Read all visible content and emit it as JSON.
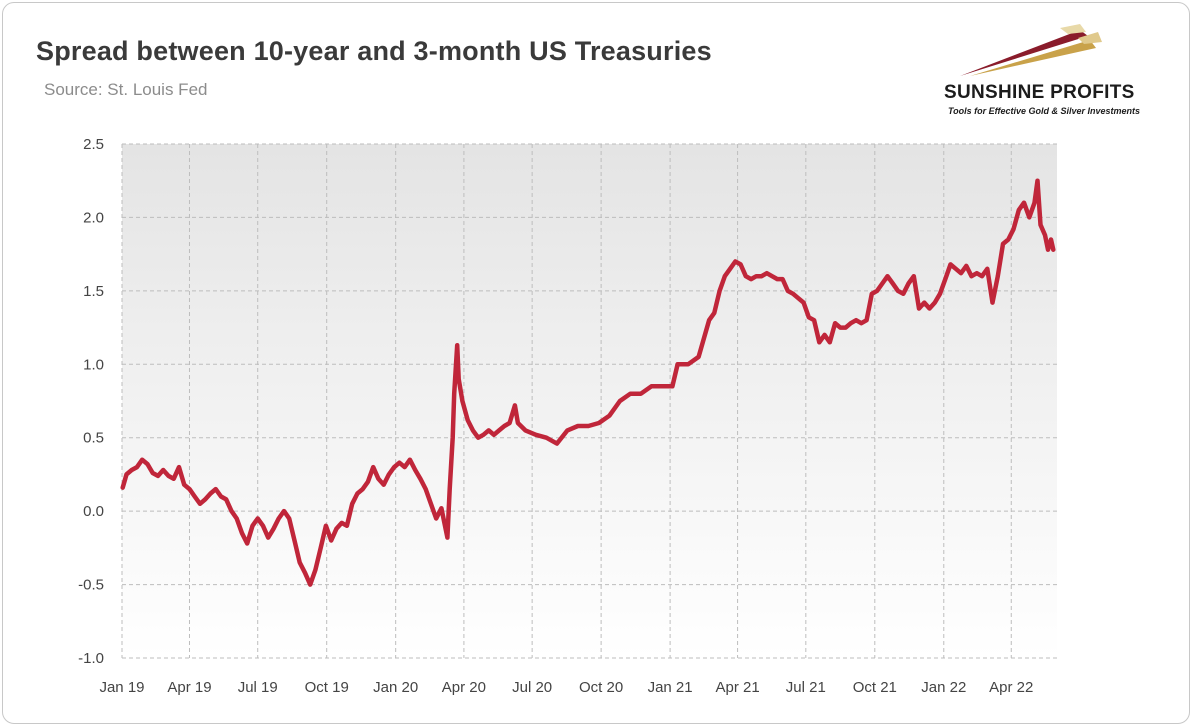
{
  "header": {
    "title": "Spread between 10-year and 3-month US Treasuries",
    "subtitle": "Source: St. Louis Fed"
  },
  "logo": {
    "name": "SUNSHINE PROFITS",
    "tagline": "Tools for Effective Gold & Silver Investments",
    "colors": [
      "#8a1c2b",
      "#c9a24a",
      "#e8d9a8"
    ]
  },
  "chart_data": {
    "type": "line",
    "title": "Spread between 10-year and 3-month US Treasuries",
    "xlabel": "",
    "ylabel": "",
    "ylim": [
      -1.0,
      2.5
    ],
    "yticks": [
      "2.5",
      "2.0",
      "1.5",
      "1.0",
      "0.5",
      "0.0",
      "-0.5",
      "-1.0"
    ],
    "xticks": [
      "Jan 19",
      "Apr 19",
      "Jul 19",
      "Oct 19",
      "Jan 20",
      "Apr 20",
      "Jul 20",
      "Oct 20",
      "Jan 21",
      "Apr 21",
      "Jul 21",
      "Oct 21",
      "Jan 22",
      "Apr 22"
    ],
    "grid": true,
    "line_color": "#c0263a",
    "series": [
      {
        "points": [
          [
            "2019-01-02",
            0.16
          ],
          [
            "2019-01-07",
            0.25
          ],
          [
            "2019-01-14",
            0.28
          ],
          [
            "2019-01-21",
            0.3
          ],
          [
            "2019-01-28",
            0.35
          ],
          [
            "2019-02-04",
            0.32
          ],
          [
            "2019-02-11",
            0.26
          ],
          [
            "2019-02-18",
            0.24
          ],
          [
            "2019-02-25",
            0.28
          ],
          [
            "2019-03-04",
            0.24
          ],
          [
            "2019-03-11",
            0.22
          ],
          [
            "2019-03-18",
            0.3
          ],
          [
            "2019-03-25",
            0.18
          ],
          [
            "2019-04-01",
            0.15
          ],
          [
            "2019-04-08",
            0.1
          ],
          [
            "2019-04-15",
            0.05
          ],
          [
            "2019-04-22",
            0.08
          ],
          [
            "2019-04-29",
            0.12
          ],
          [
            "2019-05-06",
            0.15
          ],
          [
            "2019-05-13",
            0.1
          ],
          [
            "2019-05-20",
            0.08
          ],
          [
            "2019-05-27",
            0.0
          ],
          [
            "2019-06-03",
            -0.05
          ],
          [
            "2019-06-10",
            -0.15
          ],
          [
            "2019-06-17",
            -0.22
          ],
          [
            "2019-06-24",
            -0.1
          ],
          [
            "2019-07-01",
            -0.05
          ],
          [
            "2019-07-08",
            -0.1
          ],
          [
            "2019-07-15",
            -0.18
          ],
          [
            "2019-07-22",
            -0.12
          ],
          [
            "2019-07-29",
            -0.05
          ],
          [
            "2019-08-05",
            0.0
          ],
          [
            "2019-08-12",
            -0.05
          ],
          [
            "2019-08-19",
            -0.2
          ],
          [
            "2019-08-26",
            -0.35
          ],
          [
            "2019-09-02",
            -0.42
          ],
          [
            "2019-09-09",
            -0.5
          ],
          [
            "2019-09-16",
            -0.4
          ],
          [
            "2019-09-23",
            -0.25
          ],
          [
            "2019-09-30",
            -0.1
          ],
          [
            "2019-10-07",
            -0.2
          ],
          [
            "2019-10-14",
            -0.12
          ],
          [
            "2019-10-21",
            -0.08
          ],
          [
            "2019-10-28",
            -0.1
          ],
          [
            "2019-11-04",
            0.05
          ],
          [
            "2019-11-11",
            0.12
          ],
          [
            "2019-11-18",
            0.15
          ],
          [
            "2019-11-25",
            0.2
          ],
          [
            "2019-12-02",
            0.3
          ],
          [
            "2019-12-09",
            0.22
          ],
          [
            "2019-12-16",
            0.18
          ],
          [
            "2019-12-23",
            0.25
          ],
          [
            "2019-12-30",
            0.3
          ],
          [
            "2020-01-06",
            0.33
          ],
          [
            "2020-01-13",
            0.3
          ],
          [
            "2020-01-20",
            0.35
          ],
          [
            "2020-01-27",
            0.28
          ],
          [
            "2020-02-03",
            0.22
          ],
          [
            "2020-02-10",
            0.15
          ],
          [
            "2020-02-17",
            0.05
          ],
          [
            "2020-02-24",
            -0.05
          ],
          [
            "2020-03-02",
            0.02
          ],
          [
            "2020-03-06",
            -0.08
          ],
          [
            "2020-03-10",
            -0.18
          ],
          [
            "2020-03-13",
            0.15
          ],
          [
            "2020-03-17",
            0.5
          ],
          [
            "2020-03-19",
            0.8
          ],
          [
            "2020-03-23",
            1.13
          ],
          [
            "2020-03-25",
            0.9
          ],
          [
            "2020-03-30",
            0.75
          ],
          [
            "2020-04-06",
            0.62
          ],
          [
            "2020-04-13",
            0.55
          ],
          [
            "2020-04-20",
            0.5
          ],
          [
            "2020-04-27",
            0.52
          ],
          [
            "2020-05-04",
            0.55
          ],
          [
            "2020-05-11",
            0.52
          ],
          [
            "2020-05-18",
            0.55
          ],
          [
            "2020-05-25",
            0.58
          ],
          [
            "2020-06-01",
            0.6
          ],
          [
            "2020-06-08",
            0.72
          ],
          [
            "2020-06-12",
            0.6
          ],
          [
            "2020-06-22",
            0.55
          ],
          [
            "2020-07-06",
            0.52
          ],
          [
            "2020-07-20",
            0.5
          ],
          [
            "2020-08-03",
            0.46
          ],
          [
            "2020-08-17",
            0.55
          ],
          [
            "2020-08-31",
            0.58
          ],
          [
            "2020-09-14",
            0.58
          ],
          [
            "2020-09-28",
            0.6
          ],
          [
            "2020-10-12",
            0.65
          ],
          [
            "2020-10-26",
            0.75
          ],
          [
            "2020-11-09",
            0.8
          ],
          [
            "2020-11-23",
            0.8
          ],
          [
            "2020-12-07",
            0.85
          ],
          [
            "2020-12-21",
            0.85
          ],
          [
            "2021-01-04",
            0.85
          ],
          [
            "2021-01-11",
            1.0
          ],
          [
            "2021-01-25",
            1.0
          ],
          [
            "2021-02-08",
            1.05
          ],
          [
            "2021-02-22",
            1.3
          ],
          [
            "2021-03-01",
            1.35
          ],
          [
            "2021-03-08",
            1.5
          ],
          [
            "2021-03-15",
            1.6
          ],
          [
            "2021-03-22",
            1.65
          ],
          [
            "2021-03-29",
            1.7
          ],
          [
            "2021-04-05",
            1.68
          ],
          [
            "2021-04-12",
            1.6
          ],
          [
            "2021-04-19",
            1.58
          ],
          [
            "2021-04-26",
            1.6
          ],
          [
            "2021-05-03",
            1.6
          ],
          [
            "2021-05-10",
            1.62
          ],
          [
            "2021-05-17",
            1.6
          ],
          [
            "2021-05-24",
            1.58
          ],
          [
            "2021-05-31",
            1.58
          ],
          [
            "2021-06-07",
            1.5
          ],
          [
            "2021-06-14",
            1.48
          ],
          [
            "2021-06-21",
            1.45
          ],
          [
            "2021-06-28",
            1.42
          ],
          [
            "2021-07-05",
            1.32
          ],
          [
            "2021-07-12",
            1.3
          ],
          [
            "2021-07-19",
            1.15
          ],
          [
            "2021-07-26",
            1.2
          ],
          [
            "2021-08-02",
            1.15
          ],
          [
            "2021-08-09",
            1.28
          ],
          [
            "2021-08-16",
            1.25
          ],
          [
            "2021-08-23",
            1.25
          ],
          [
            "2021-08-30",
            1.28
          ],
          [
            "2021-09-06",
            1.3
          ],
          [
            "2021-09-13",
            1.28
          ],
          [
            "2021-09-20",
            1.3
          ],
          [
            "2021-09-27",
            1.48
          ],
          [
            "2021-10-04",
            1.5
          ],
          [
            "2021-10-11",
            1.55
          ],
          [
            "2021-10-18",
            1.6
          ],
          [
            "2021-10-25",
            1.55
          ],
          [
            "2021-11-01",
            1.5
          ],
          [
            "2021-11-08",
            1.48
          ],
          [
            "2021-11-15",
            1.55
          ],
          [
            "2021-11-22",
            1.6
          ],
          [
            "2021-11-29",
            1.38
          ],
          [
            "2021-12-06",
            1.42
          ],
          [
            "2021-12-13",
            1.38
          ],
          [
            "2021-12-20",
            1.42
          ],
          [
            "2021-12-27",
            1.48
          ],
          [
            "2022-01-03",
            1.58
          ],
          [
            "2022-01-10",
            1.68
          ],
          [
            "2022-01-17",
            1.65
          ],
          [
            "2022-01-24",
            1.62
          ],
          [
            "2022-01-31",
            1.67
          ],
          [
            "2022-02-07",
            1.6
          ],
          [
            "2022-02-14",
            1.62
          ],
          [
            "2022-02-21",
            1.6
          ],
          [
            "2022-02-28",
            1.65
          ],
          [
            "2022-03-07",
            1.42
          ],
          [
            "2022-03-14",
            1.6
          ],
          [
            "2022-03-21",
            1.82
          ],
          [
            "2022-03-28",
            1.85
          ],
          [
            "2022-04-04",
            1.92
          ],
          [
            "2022-04-11",
            2.05
          ],
          [
            "2022-04-18",
            2.1
          ],
          [
            "2022-04-25",
            2.0
          ],
          [
            "2022-05-02",
            2.1
          ],
          [
            "2022-05-06",
            2.25
          ],
          [
            "2022-05-10",
            1.95
          ],
          [
            "2022-05-16",
            1.88
          ],
          [
            "2022-05-20",
            1.78
          ],
          [
            "2022-05-24",
            1.85
          ],
          [
            "2022-05-27",
            1.78
          ]
        ]
      }
    ]
  }
}
